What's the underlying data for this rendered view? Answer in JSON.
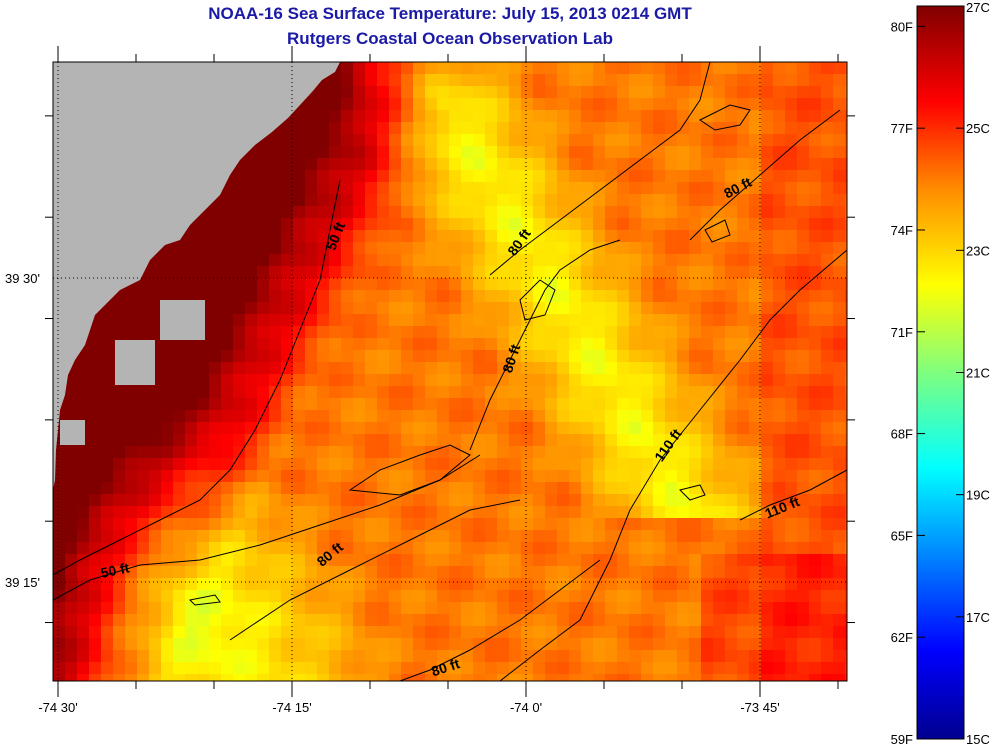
{
  "header": {
    "title": "NOAA-16 Sea Surface Temperature:  July 15, 2013 0214 GMT",
    "subtitle": "Rutgers Coastal Ocean Observation Lab"
  },
  "axes": {
    "lon_ticks": [
      {
        "value": -74.5,
        "label": "-74 30'"
      },
      {
        "value": -74.25,
        "label": "-74 15'"
      },
      {
        "value": -74.0,
        "label": "-74 0'"
      },
      {
        "value": -73.75,
        "label": "-73 45'"
      }
    ],
    "lat_ticks": [
      {
        "value": 39.5,
        "label": "39 30'"
      },
      {
        "value": 39.25,
        "label": "39 15'"
      }
    ]
  },
  "colorbar": {
    "min_c": 15,
    "max_c": 27,
    "fahrenheit_labels": [
      "80F",
      "77F",
      "74F",
      "71F",
      "68F",
      "65F",
      "62F",
      "59F"
    ],
    "celsius_labels": [
      "27C",
      "25C",
      "23C",
      "21C",
      "19C",
      "17C",
      "15C"
    ]
  },
  "contour_labels": [
    "50 ft",
    "80 ft",
    "80 ft",
    "80 ft",
    "110 ft",
    "110 ft",
    "80 ft",
    "50 ft",
    "80 ft"
  ],
  "colors": {
    "land": "#b4b4b4",
    "title": "#1a1aa6"
  }
}
